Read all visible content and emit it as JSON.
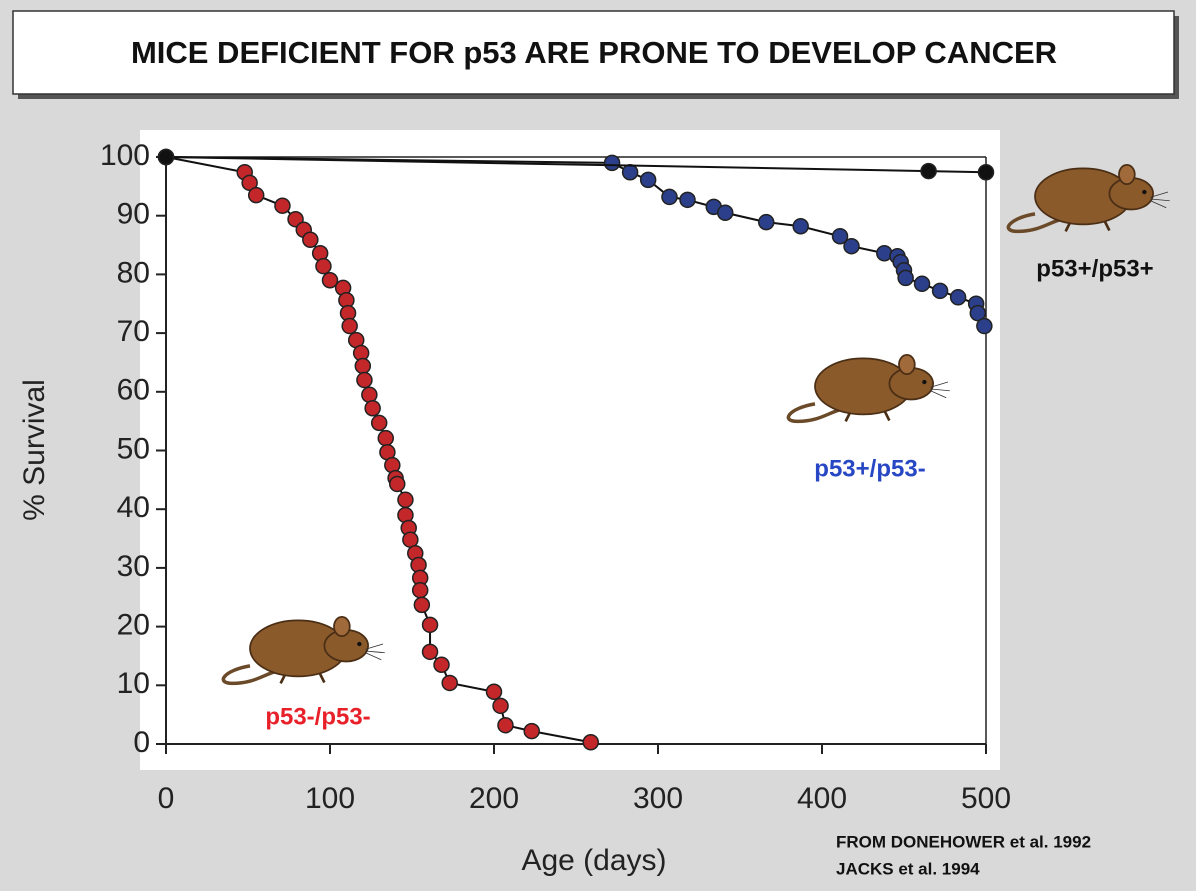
{
  "chart_data": {
    "type": "line",
    "title": "MICE DEFICIENT FOR p53 ARE PRONE TO DEVELOP CANCER",
    "x_label": "Age (days)",
    "y_label": "% Survival",
    "source": [
      "FROM DONEHOWER et al. 1992",
      "JACKS  et al. 1994"
    ],
    "xlim": [
      0,
      500
    ],
    "ylim": [
      0,
      100
    ],
    "xticks": [
      0,
      100,
      200,
      300,
      400,
      500
    ],
    "yticks": [
      0,
      10,
      20,
      30,
      40,
      50,
      60,
      70,
      80,
      90,
      100
    ],
    "grid": false,
    "series": [
      {
        "name": "p53+/p53+",
        "color": "#111111",
        "label_color": "#111111",
        "x": [
          0,
          465,
          500
        ],
        "values": [
          100,
          97.6,
          97.4
        ]
      },
      {
        "name": "p53+/p53-",
        "color": "#2b3f8a",
        "label_color": "#2747c4",
        "x": [
          0,
          272,
          283,
          294,
          307,
          318,
          334,
          341,
          366,
          387,
          411,
          418,
          438,
          446,
          448,
          450,
          451,
          461,
          472,
          483,
          494,
          495,
          499
        ],
        "values": [
          100,
          99,
          97.4,
          96.1,
          93.2,
          92.7,
          91.5,
          90.5,
          88.9,
          88.2,
          86.5,
          84.8,
          83.6,
          83.1,
          82.1,
          80.7,
          79.4,
          78.4,
          77.2,
          76.1,
          75,
          73.4,
          71.2
        ]
      },
      {
        "name": "p53-/p53-",
        "color": "#c3272a",
        "label_color": "#e8202a",
        "x": [
          0,
          48,
          51,
          55,
          71,
          79,
          84,
          88,
          94,
          96,
          100,
          108,
          110,
          111,
          112,
          116,
          119,
          120,
          121,
          124,
          126,
          130,
          134,
          135,
          138,
          140,
          141,
          146,
          146,
          148,
          149,
          152,
          154,
          155,
          155,
          156,
          161,
          161,
          168,
          173,
          200,
          204,
          207,
          223,
          259
        ],
        "values": [
          100,
          97.4,
          95.6,
          93.5,
          91.7,
          89.4,
          87.6,
          85.9,
          83.6,
          81.4,
          79,
          77.7,
          75.6,
          73.4,
          71.2,
          68.8,
          66.6,
          64.4,
          62,
          59.5,
          57.2,
          54.7,
          52.1,
          49.7,
          47.5,
          45.3,
          44.3,
          41.6,
          39,
          36.8,
          34.8,
          32.5,
          30.5,
          28.3,
          26.2,
          23.7,
          20.3,
          15.7,
          13.5,
          10.4,
          8.9,
          6.5,
          3.2,
          2.2,
          0.3
        ]
      }
    ]
  }
}
